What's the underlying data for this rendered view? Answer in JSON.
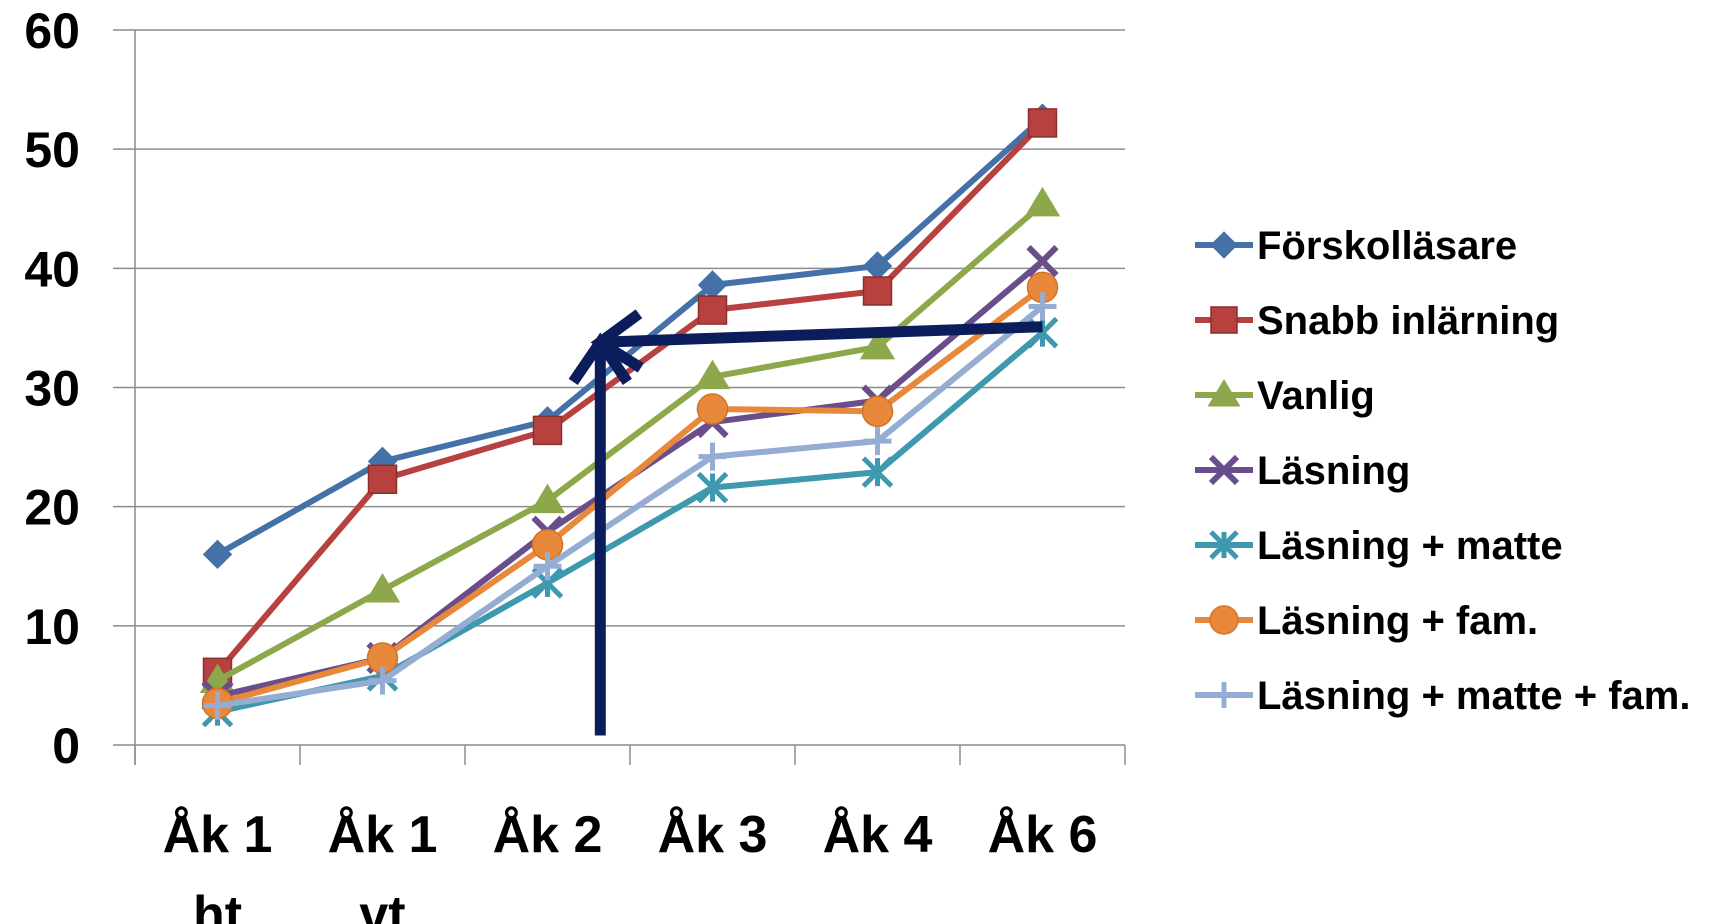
{
  "chart_data": {
    "type": "line",
    "title": "",
    "xlabel": "",
    "ylabel": "",
    "categories": [
      [
        "Åk 1",
        "ht"
      ],
      [
        "Åk 1",
        "vt"
      ],
      [
        "Åk 2"
      ],
      [
        "Åk 3"
      ],
      [
        "Åk 4"
      ],
      [
        "Åk 6"
      ]
    ],
    "ylim": [
      0,
      60
    ],
    "yticks": [
      "0",
      "10",
      "20",
      "30",
      "40",
      "50",
      "60"
    ],
    "grid": true,
    "legend_position": "right",
    "series": [
      {
        "name": "Förskolläsare",
        "color": "#4472A8",
        "marker": "diamond",
        "values": [
          16,
          23.8,
          27.2,
          38.6,
          40.2,
          52.6
        ]
      },
      {
        "name": "Snabb inlärning",
        "color": "#B7413E",
        "marker": "square",
        "values": [
          6.1,
          22.3,
          26.4,
          36.5,
          38.1,
          52.2
        ]
      },
      {
        "name": "Vanlig",
        "color": "#8CA84A",
        "marker": "triangle",
        "values": [
          5.4,
          13,
          20.5,
          30.9,
          33.4,
          45.4
        ]
      },
      {
        "name": "Läsning",
        "color": "#6A4E8C",
        "marker": "x",
        "values": [
          4.1,
          7.3,
          17.9,
          27.1,
          28.9,
          40.6
        ]
      },
      {
        "name": "Läsning + matte",
        "color": "#3E98AE",
        "marker": "asterisk",
        "values": [
          2.8,
          5.8,
          13.6,
          21.6,
          22.9,
          34.6
        ]
      },
      {
        "name": "Läsning + fam.",
        "color": "#E8883A",
        "marker": "circle",
        "values": [
          3.5,
          7.3,
          16.8,
          28.2,
          28,
          38.4
        ]
      },
      {
        "name": "Läsning + matte + fam.",
        "color": "#95ADD3",
        "marker": "plus",
        "values": [
          3.3,
          5.4,
          15,
          24.2,
          25.5,
          36.8
        ]
      }
    ],
    "annotations": [
      {
        "type": "arrow",
        "description": "vertical arrow",
        "color": "#0B1E5B",
        "from": {
          "x": 3.32,
          "y": 0.8
        },
        "to": {
          "x": 3.32,
          "y": 33.8
        }
      },
      {
        "type": "arrow",
        "description": "horizontal arrow",
        "color": "#0B1E5B",
        "from": {
          "x": 6.0,
          "y": 35.1
        },
        "to": {
          "x": 3.32,
          "y": 33.8
        }
      }
    ]
  }
}
